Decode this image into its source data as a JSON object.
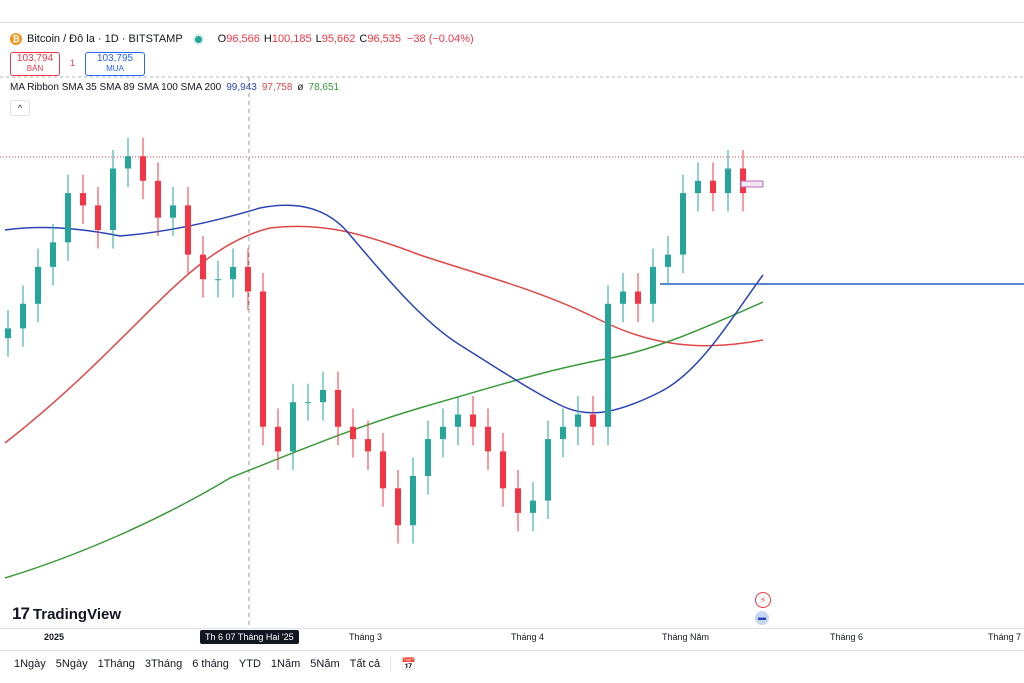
{
  "header": {
    "symbol": "Bitcoin / Đô la · 1D · BITSTAMP",
    "btc_glyph": "₿",
    "ohlc": {
      "o_key": "O",
      "o_val": "96,566",
      "h_key": "H",
      "h_val": "100,185",
      "l_key": "L",
      "l_val": "95,662",
      "c_key": "C",
      "c_val": "96,535",
      "change": "−38 (−0.04%)"
    },
    "up_color": "#26a69a",
    "down_color": "#f23645"
  },
  "quotes": {
    "sell_price": "103,794",
    "sell_label": "BÁN",
    "spread": "1",
    "buy_price": "103,795",
    "buy_label": "MUA"
  },
  "indicator": {
    "name": "MA Ribbon SMA 35 SMA 89 SMA 100 SMA 200",
    "v1": "99,943",
    "v2": "97,758",
    "v3": "ø",
    "v4": "78,651",
    "colors": {
      "sma35": "#2a44b8",
      "sma89": "#e04848",
      "sma200": "#3a9a3a"
    }
  },
  "collapse_glyph": "^",
  "logo": {
    "mark": "17",
    "text": "TradingView"
  },
  "x_axis": {
    "labels": [
      "2025",
      "Tháng 3",
      "Tháng 4",
      "Tháng Năm",
      "Tháng 6",
      "Tháng 7"
    ],
    "crosshair": "Th 6 07 Tháng Hai '25"
  },
  "ranges": [
    "1Ngày",
    "5Ngày",
    "1Tháng",
    "3Tháng",
    "6 tháng",
    "YTD",
    "1Năm",
    "5Năm",
    "Tất cả"
  ],
  "side_icons": [
    "lightning-icon",
    "flag-icon"
  ],
  "chart_data": {
    "type": "candlestick",
    "symbol": "BTC/USD",
    "timeframe": "1D",
    "candles_approx_price": [
      92000,
      94000,
      97000,
      99000,
      103000,
      102000,
      100000,
      105000,
      106000,
      104000,
      101000,
      102000,
      98000,
      96000,
      96000,
      97000,
      95000,
      84000,
      82000,
      86000,
      86000,
      87000,
      84000,
      83000,
      82000,
      79000,
      76000,
      80000,
      83000,
      84000,
      85000,
      84000,
      82000,
      79000,
      77000,
      78000,
      83000,
      84000,
      85000,
      84000,
      94000,
      95000,
      94000,
      97000,
      98000,
      103000,
      104000,
      103000,
      105000,
      103000
    ],
    "moving_averages": [
      {
        "name": "SMA 35",
        "color": "#2a44b8",
        "value": 99943
      },
      {
        "name": "SMA 89",
        "color": "#e04848",
        "value": 97758
      },
      {
        "name": "SMA 200",
        "color": "#3a9a3a",
        "value": 78651
      }
    ],
    "horizontal_line_price": 95500
  }
}
